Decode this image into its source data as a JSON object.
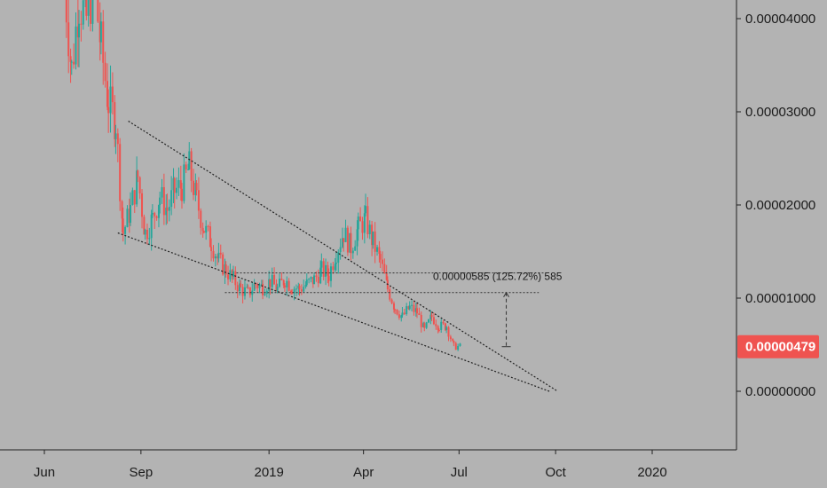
{
  "chart_data": {
    "type": "candlestick",
    "x_ticks": [
      "Jun",
      "Sep",
      "2019",
      "Apr",
      "Jul",
      "Oct",
      "2020"
    ],
    "y_ticks": [
      "0.00004000",
      "0.00003000",
      "0.00002000",
      "0.00001000",
      "0.00000000"
    ],
    "ylim": [
      -5.5e-06,
      4.35e-05
    ],
    "current_price": {
      "label": "0.00000479",
      "value": 4.79e-06
    },
    "measure_label": "0.00000585 (125.72%) 585",
    "channel": {
      "upper": [
        [
          "Aug 20 2018",
          2.9e-05
        ],
        [
          "Oct 3 2019",
          -0.0
        ]
      ],
      "lower": [
        [
          "Aug 10 2018",
          1.7e-05
        ],
        [
          "Sep 25 2019",
          0.0
        ]
      ]
    },
    "levels": [
      1.27e-05,
      1.06e-05
    ],
    "colors": {
      "up": "#26a69a",
      "down": "#ef5350",
      "background": "#b3b3b3",
      "price_tag": "#ef5350",
      "line": "#222222"
    },
    "ohlc_points": [
      [
        "Jun 20 2018",
        4.4e-05
      ],
      [
        "Jun 27 2018",
        3.45e-05
      ],
      [
        "Jul 4 2018",
        4.2e-05
      ],
      [
        "Jul 11 2018",
        4e-05
      ],
      [
        "Jul 18 2018",
        4.4e-05
      ],
      [
        "Jul 25 2018",
        3.7e-05
      ],
      [
        "Aug 1 2018",
        3.1e-05
      ],
      [
        "Aug 8 2018",
        2.9e-05
      ],
      [
        "Aug 15 2018",
        1.7e-05
      ],
      [
        "Aug 22 2018",
        1.95e-05
      ],
      [
        "Aug 29 2018",
        2.3e-05
      ],
      [
        "Sep 5 2018",
        1.7e-05
      ],
      [
        "Sep 12 2018",
        1.85e-05
      ],
      [
        "Sep 19 2018",
        2.1e-05
      ],
      [
        "Sep 26 2018",
        1.95e-05
      ],
      [
        "Oct 3 2018",
        2.15e-05
      ],
      [
        "Oct 10 2018",
        2.2e-05
      ],
      [
        "Oct 17 2018",
        2.4e-05
      ],
      [
        "Oct 24 2018",
        2.05e-05
      ],
      [
        "Oct 31 2018",
        1.75e-05
      ],
      [
        "Nov 7 2018",
        1.6e-05
      ],
      [
        "Nov 14 2018",
        1.4e-05
      ],
      [
        "Nov 21 2018",
        1.3e-05
      ],
      [
        "Nov 28 2018",
        1.2e-05
      ],
      [
        "Dec 5 2018",
        1.1e-05
      ],
      [
        "Dec 12 2018",
        1.05e-05
      ],
      [
        "Dec 19 2018",
        1.15e-05
      ],
      [
        "Dec 26 2018",
        1.12e-05
      ],
      [
        "Jan 2 2019",
        1.18e-05
      ],
      [
        "Jan 9 2019",
        1.1e-05
      ],
      [
        "Jan 16 2019",
        1.2e-05
      ],
      [
        "Jan 23 2019",
        1.12e-05
      ],
      [
        "Jan 30 2019",
        1.1e-05
      ],
      [
        "Feb 6 2019",
        1.15e-05
      ],
      [
        "Feb 13 2019",
        1.2e-05
      ],
      [
        "Feb 20 2019",
        1.3e-05
      ],
      [
        "Feb 27 2019",
        1.25e-05
      ],
      [
        "Mar 6 2019",
        1.5e-05
      ],
      [
        "Mar 13 2019",
        1.7e-05
      ],
      [
        "Mar 20 2019",
        1.55e-05
      ],
      [
        "Mar 27 2019",
        1.75e-05
      ],
      [
        "Apr 3 2019",
        1.85e-05
      ],
      [
        "Apr 10 2019",
        1.6e-05
      ],
      [
        "Apr 17 2019",
        1.4e-05
      ],
      [
        "Apr 24 2019",
        1.1e-05
      ],
      [
        "May 1 2019",
        9e-06
      ],
      [
        "May 8 2019",
        8e-06
      ],
      [
        "May 15 2019",
        9e-06
      ],
      [
        "May 22 2019",
        8.5e-06
      ],
      [
        "May 29 2019",
        6.5e-06
      ],
      [
        "Jun 5 2019",
        8e-06
      ],
      [
        "Jun 12 2019",
        7e-06
      ],
      [
        "Jun 19 2019",
        7e-06
      ],
      [
        "Jun 26 2019",
        4.8e-06
      ],
      [
        "Jul 3 2019",
        4.8e-06
      ]
    ]
  }
}
